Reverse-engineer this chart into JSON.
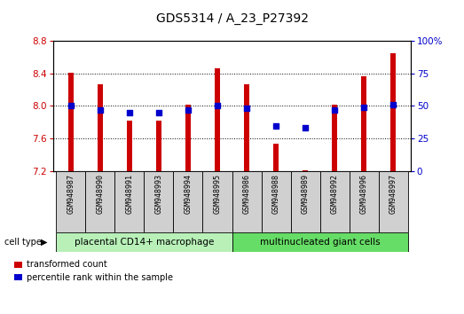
{
  "title": "GDS5314 / A_23_P27392",
  "samples": [
    "GSM948987",
    "GSM948990",
    "GSM948991",
    "GSM948993",
    "GSM948994",
    "GSM948995",
    "GSM948986",
    "GSM948988",
    "GSM948989",
    "GSM948992",
    "GSM948996",
    "GSM948997"
  ],
  "transformed_count": [
    8.41,
    8.27,
    7.82,
    7.82,
    8.02,
    8.46,
    8.27,
    7.54,
    7.21,
    8.02,
    8.36,
    8.65
  ],
  "percentile_rank": [
    50,
    47,
    45,
    45,
    47,
    50,
    48,
    35,
    33,
    47,
    49,
    51
  ],
  "group1_count": 6,
  "group2_count": 6,
  "group1_label": "placental CD14+ macrophage",
  "group2_label": "multinucleated giant cells",
  "cell_type_label": "cell type",
  "ylim_left": [
    7.2,
    8.8
  ],
  "ylim_right": [
    0,
    100
  ],
  "yticks_left": [
    7.2,
    7.6,
    8.0,
    8.4,
    8.8
  ],
  "yticks_right": [
    0,
    25,
    50,
    75,
    100
  ],
  "bar_color": "#cc0000",
  "marker_color": "#0000cc",
  "bar_width": 0.18,
  "bar_bottom": 7.2,
  "bg_color_group1": "#b8f0b8",
  "bg_color_group2": "#66dd66",
  "tick_label_color_left": "#cc0000",
  "tick_label_color_right": "#0000cc",
  "legend_tc_label": "transformed count",
  "legend_pr_label": "percentile rank within the sample",
  "sample_area_bg": "#d0d0d0",
  "plot_bg": "#ffffff",
  "title_fontsize": 10,
  "axis_fontsize": 7.5,
  "legend_fontsize": 7,
  "sample_fontsize": 6
}
